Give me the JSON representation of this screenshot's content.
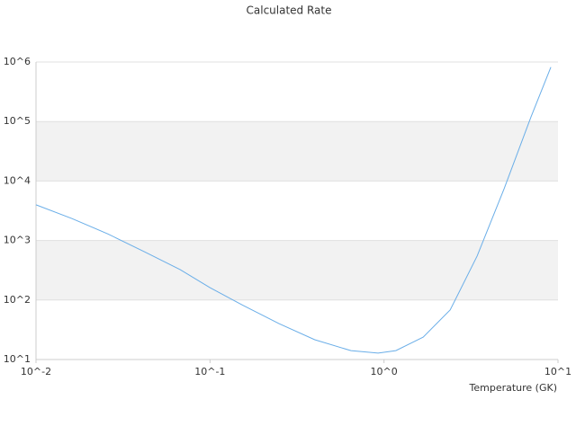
{
  "chart_data": {
    "type": "line",
    "title": "Calculated Rate",
    "x_label": "Temperature (GK)",
    "log_x": true,
    "log_y": true,
    "grid": true,
    "band_color": "#f2f2f2",
    "xlim": [
      0.01,
      10
    ],
    "ylim": [
      10,
      1000000
    ],
    "xticks": [
      {
        "value": 0.01,
        "label": "10^-2"
      },
      {
        "value": 0.1,
        "label": "10^-1"
      },
      {
        "value": 1,
        "label": "10^0"
      },
      {
        "value": 10,
        "label": "10^1"
      }
    ],
    "yticks": [
      {
        "value": 10,
        "label": "10^1"
      },
      {
        "value": 100,
        "label": "10^2"
      },
      {
        "value": 1000,
        "label": "10^3"
      },
      {
        "value": 10000,
        "label": "10^4"
      },
      {
        "value": 100000,
        "label": "10^5"
      },
      {
        "value": 1000000,
        "label": "10^6"
      }
    ],
    "x": [
      0.01,
      0.0161,
      0.0259,
      0.0418,
      0.0673,
      0.1,
      0.155,
      0.25,
      0.4,
      0.646,
      0.925,
      1.17,
      1.68,
      2.4,
      3.43,
      4.9,
      7.0,
      9.1
    ],
    "series": [
      {
        "color": "#6aaee8",
        "values": [
          3980,
          2340,
          1290,
          650,
          325,
          161,
          81,
          40,
          21.5,
          14.1,
          12.8,
          14.1,
          23.8,
          68,
          550,
          7400,
          120000,
          820000
        ]
      }
    ]
  }
}
